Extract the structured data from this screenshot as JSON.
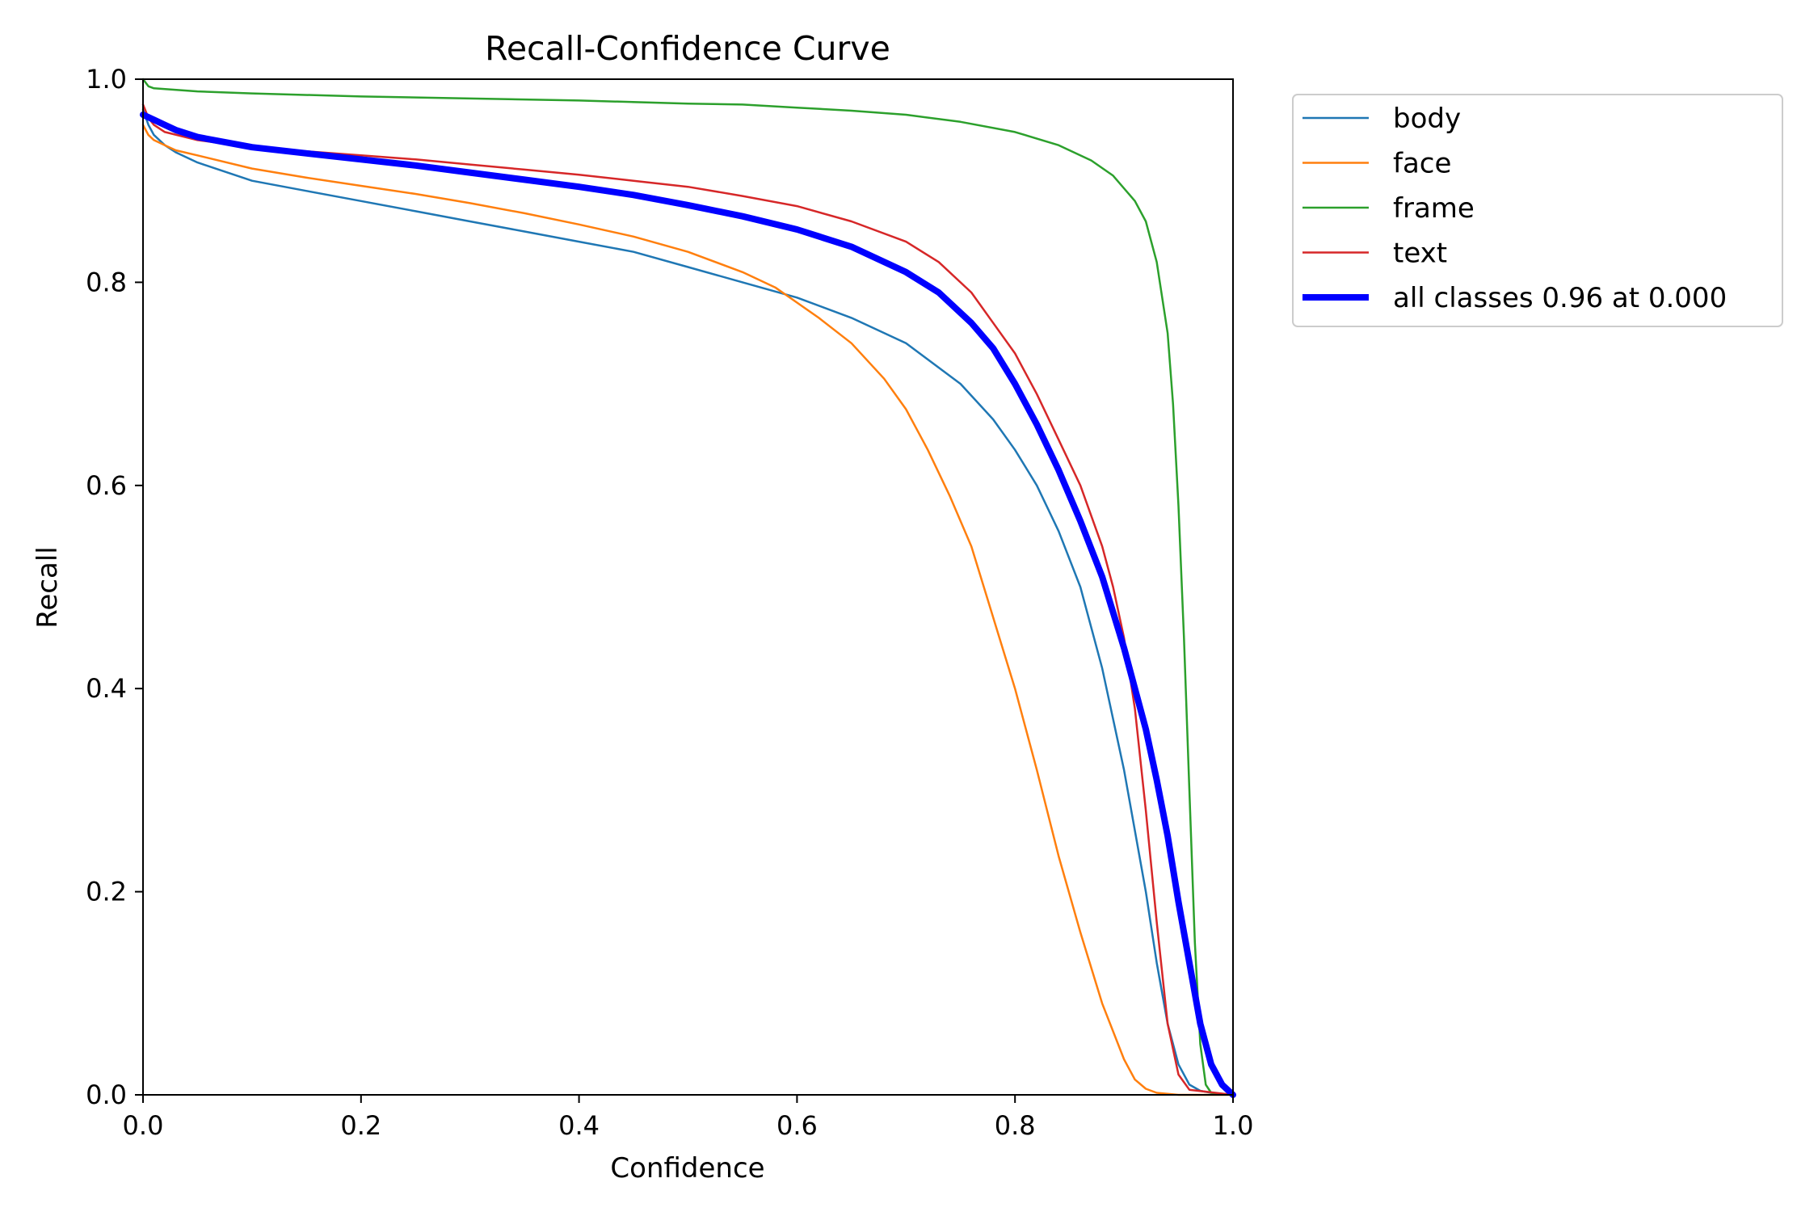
{
  "chart_data": {
    "type": "line",
    "title": "Recall-Confidence Curve",
    "xlabel": "Confidence",
    "ylabel": "Recall",
    "xlim": [
      0,
      1
    ],
    "ylim": [
      0,
      1
    ],
    "xticks": [
      "0.0",
      "0.2",
      "0.4",
      "0.6",
      "0.8",
      "1.0"
    ],
    "yticks": [
      "0.0",
      "0.2",
      "0.4",
      "0.6",
      "0.8",
      "1.0"
    ],
    "grid": false,
    "legend_placement": "outside top-right",
    "series": [
      {
        "name": "body",
        "color": "#1f77b4",
        "x": [
          0.0,
          0.005,
          0.01,
          0.02,
          0.03,
          0.05,
          0.1,
          0.15,
          0.2,
          0.25,
          0.3,
          0.35,
          0.4,
          0.45,
          0.5,
          0.55,
          0.6,
          0.65,
          0.7,
          0.75,
          0.78,
          0.8,
          0.82,
          0.84,
          0.86,
          0.88,
          0.9,
          0.92,
          0.93,
          0.94,
          0.95,
          0.96,
          0.97,
          0.98,
          1.0
        ],
        "y": [
          0.97,
          0.955,
          0.945,
          0.935,
          0.928,
          0.918,
          0.9,
          0.89,
          0.88,
          0.87,
          0.86,
          0.85,
          0.84,
          0.83,
          0.815,
          0.8,
          0.785,
          0.765,
          0.74,
          0.7,
          0.665,
          0.635,
          0.6,
          0.555,
          0.5,
          0.42,
          0.32,
          0.2,
          0.13,
          0.07,
          0.03,
          0.01,
          0.004,
          0.002,
          0.0
        ]
      },
      {
        "name": "face",
        "color": "#ff7f0e",
        "x": [
          0.0,
          0.005,
          0.01,
          0.02,
          0.03,
          0.05,
          0.1,
          0.15,
          0.2,
          0.25,
          0.3,
          0.35,
          0.4,
          0.45,
          0.5,
          0.55,
          0.58,
          0.6,
          0.62,
          0.65,
          0.68,
          0.7,
          0.72,
          0.74,
          0.76,
          0.78,
          0.8,
          0.82,
          0.84,
          0.86,
          0.88,
          0.9,
          0.91,
          0.92,
          0.93,
          0.95,
          1.0
        ],
        "y": [
          0.955,
          0.945,
          0.94,
          0.935,
          0.93,
          0.925,
          0.912,
          0.903,
          0.895,
          0.887,
          0.878,
          0.868,
          0.857,
          0.845,
          0.83,
          0.81,
          0.795,
          0.78,
          0.765,
          0.74,
          0.705,
          0.675,
          0.635,
          0.59,
          0.54,
          0.47,
          0.4,
          0.32,
          0.235,
          0.16,
          0.09,
          0.035,
          0.015,
          0.006,
          0.002,
          0.0,
          0.0
        ]
      },
      {
        "name": "frame",
        "color": "#2ca02c",
        "x": [
          0.0,
          0.005,
          0.01,
          0.05,
          0.1,
          0.2,
          0.3,
          0.4,
          0.5,
          0.55,
          0.6,
          0.65,
          0.7,
          0.75,
          0.8,
          0.84,
          0.87,
          0.89,
          0.91,
          0.92,
          0.93,
          0.94,
          0.945,
          0.95,
          0.955,
          0.96,
          0.965,
          0.97,
          0.975,
          0.98,
          1.0
        ],
        "y": [
          1.0,
          0.993,
          0.991,
          0.988,
          0.986,
          0.983,
          0.981,
          0.979,
          0.976,
          0.975,
          0.972,
          0.969,
          0.965,
          0.958,
          0.948,
          0.935,
          0.92,
          0.905,
          0.88,
          0.86,
          0.82,
          0.75,
          0.68,
          0.58,
          0.45,
          0.3,
          0.15,
          0.05,
          0.01,
          0.002,
          0.0
        ]
      },
      {
        "name": "text",
        "color": "#d62728",
        "x": [
          0.0,
          0.005,
          0.01,
          0.02,
          0.05,
          0.1,
          0.15,
          0.2,
          0.25,
          0.3,
          0.35,
          0.4,
          0.45,
          0.5,
          0.55,
          0.6,
          0.65,
          0.7,
          0.73,
          0.76,
          0.78,
          0.8,
          0.82,
          0.84,
          0.86,
          0.88,
          0.89,
          0.9,
          0.91,
          0.92,
          0.93,
          0.94,
          0.95,
          0.96,
          1.0
        ],
        "y": [
          0.975,
          0.962,
          0.955,
          0.948,
          0.94,
          0.933,
          0.929,
          0.925,
          0.921,
          0.916,
          0.911,
          0.906,
          0.9,
          0.894,
          0.885,
          0.875,
          0.86,
          0.84,
          0.82,
          0.79,
          0.76,
          0.73,
          0.69,
          0.645,
          0.6,
          0.54,
          0.5,
          0.45,
          0.38,
          0.28,
          0.17,
          0.07,
          0.02,
          0.005,
          0.0
        ]
      },
      {
        "name": "all classes 0.96 at 0.000",
        "color": "#0000ff",
        "bold": true,
        "x": [
          0.0,
          0.01,
          0.02,
          0.03,
          0.05,
          0.1,
          0.15,
          0.2,
          0.25,
          0.3,
          0.35,
          0.4,
          0.45,
          0.5,
          0.55,
          0.6,
          0.65,
          0.7,
          0.73,
          0.76,
          0.78,
          0.8,
          0.82,
          0.84,
          0.86,
          0.88,
          0.9,
          0.92,
          0.93,
          0.94,
          0.95,
          0.96,
          0.97,
          0.98,
          0.99,
          1.0
        ],
        "y": [
          0.965,
          0.96,
          0.955,
          0.95,
          0.943,
          0.933,
          0.927,
          0.921,
          0.915,
          0.908,
          0.901,
          0.894,
          0.886,
          0.876,
          0.865,
          0.852,
          0.835,
          0.81,
          0.79,
          0.76,
          0.735,
          0.7,
          0.66,
          0.615,
          0.565,
          0.51,
          0.44,
          0.36,
          0.31,
          0.255,
          0.19,
          0.13,
          0.07,
          0.03,
          0.01,
          0.0
        ]
      }
    ]
  }
}
